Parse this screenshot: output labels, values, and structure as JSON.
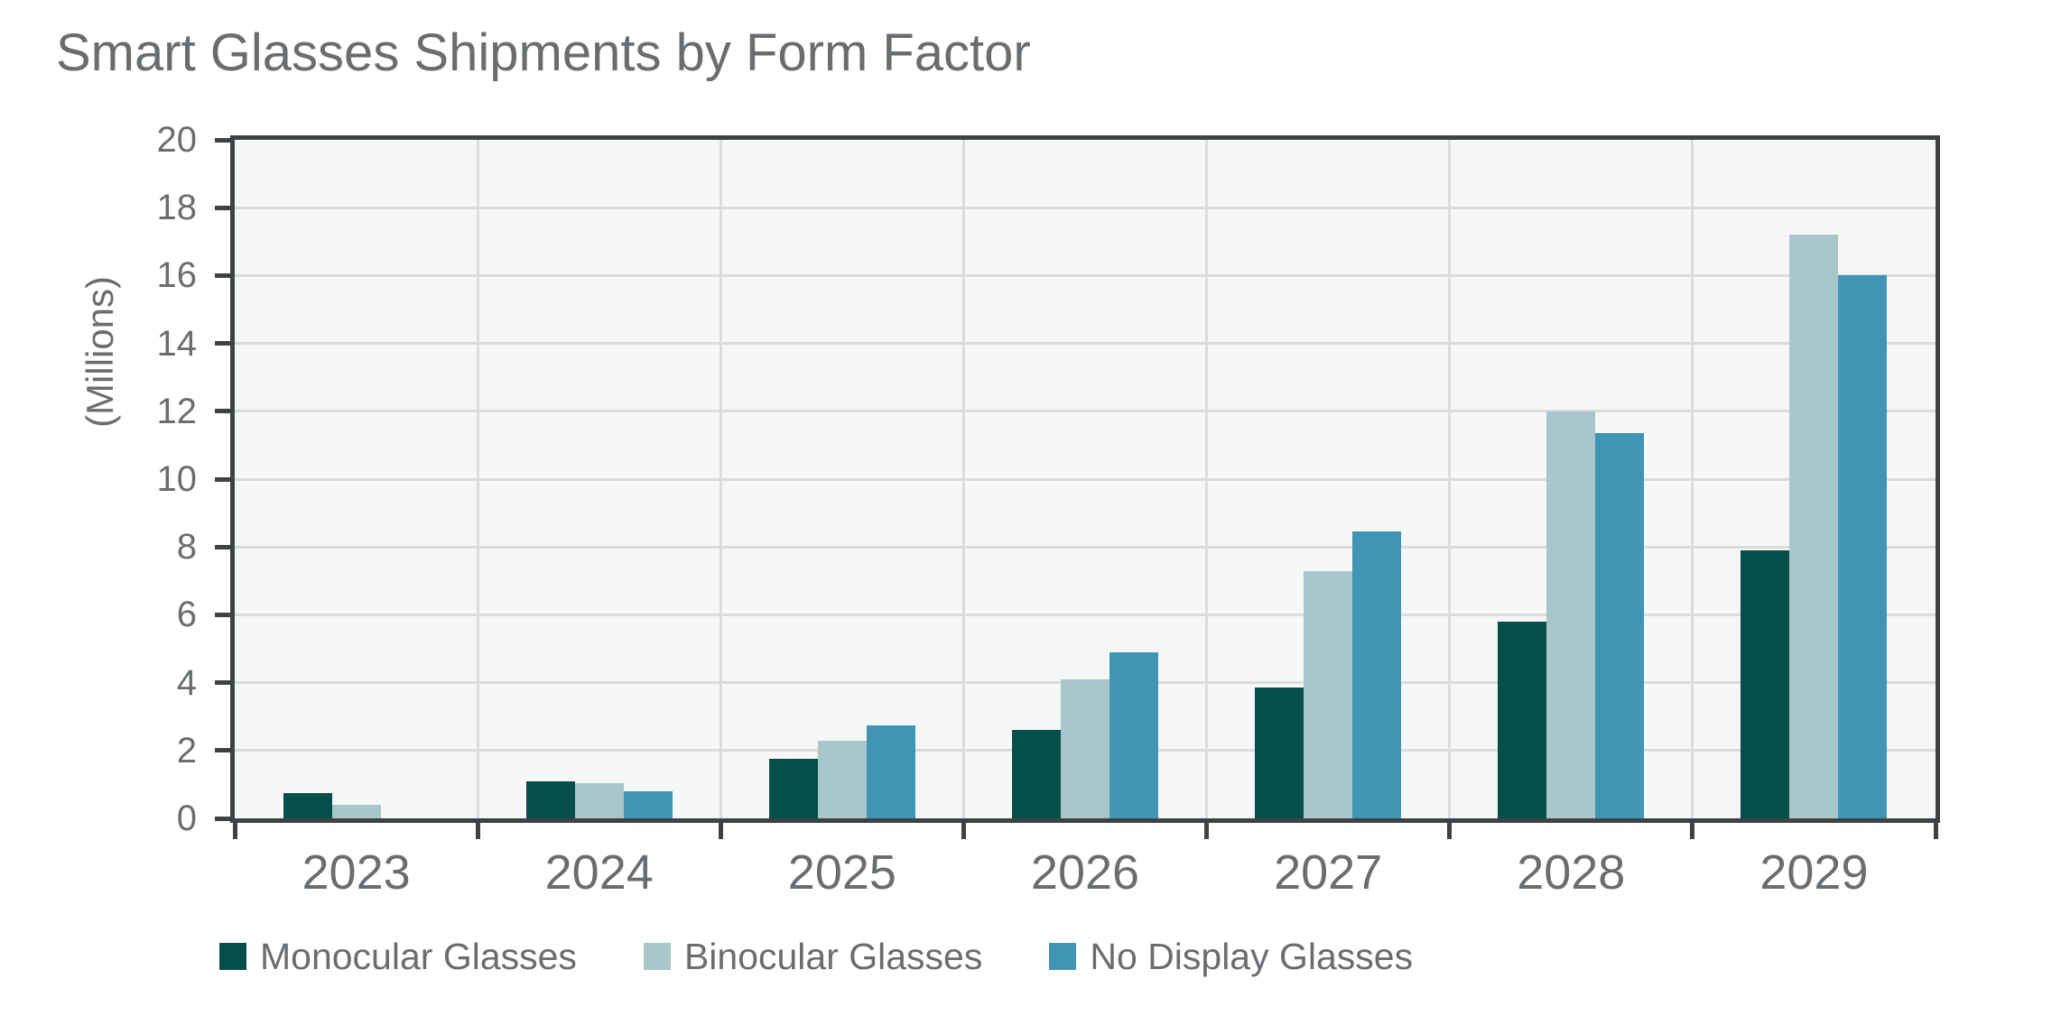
{
  "chart_data": {
    "type": "bar",
    "title": "Smart Glasses Shipments by Form Factor",
    "ylabel": "(Millions)",
    "xlabel": "",
    "ylim": [
      0,
      20
    ],
    "ytick_step": 2,
    "grid": true,
    "legend_position": "bottom",
    "categories": [
      "2023",
      "2024",
      "2025",
      "2026",
      "2027",
      "2028",
      "2029"
    ],
    "series": [
      {
        "name": "Monocular Glasses",
        "color": "#054E4A",
        "values": [
          0.75,
          1.1,
          1.75,
          2.6,
          3.85,
          5.8,
          7.9
        ]
      },
      {
        "name": "Binocular Glasses",
        "color": "#A9C7CA",
        "values": [
          0.4,
          1.05,
          2.3,
          4.1,
          7.3,
          12,
          17.2
        ]
      },
      {
        "name": "No Display Glasses",
        "color": "#4095B4",
        "values": [
          0,
          0.8,
          2.75,
          4.9,
          8.45,
          11.35,
          16
        ]
      }
    ],
    "y_tick_labels": [
      "0",
      "2",
      "4",
      "6",
      "8",
      "10",
      "12",
      "14",
      "16",
      "18",
      "20"
    ]
  },
  "colors": {
    "page_bg": "#FFFFFF",
    "plot_bg": "#F6F7F7",
    "gridline": "#DBDDDD",
    "axis": "#3E4245",
    "text": "#6A6D70"
  }
}
